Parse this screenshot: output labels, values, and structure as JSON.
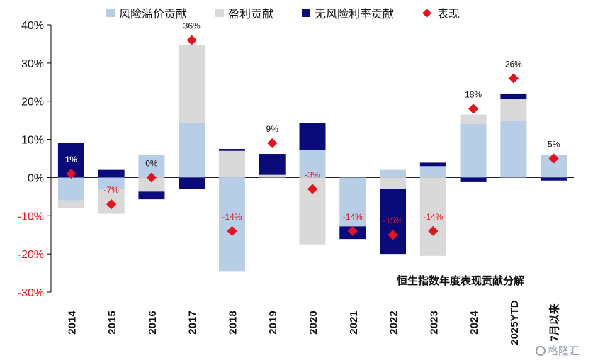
{
  "legend": [
    {
      "label": "风险溢价贡献",
      "color": "#b8cde6",
      "shape": "square"
    },
    {
      "label": "盈利贡献",
      "color": "#d9d9d9",
      "shape": "square"
    },
    {
      "label": "无风险利率贡献",
      "color": "#0a0a7a",
      "shape": "square"
    },
    {
      "label": "表现",
      "color": "#e8111d",
      "shape": "diamond"
    }
  ],
  "subtitle": "恒生指数年度表现贡献分解",
  "watermark": "格隆汇",
  "chart_data": {
    "type": "bar",
    "stacked": true,
    "categories": [
      "2014",
      "2015",
      "2016",
      "2017",
      "2018",
      "2019",
      "2020",
      "2021",
      "2022",
      "2023",
      "2024",
      "2025YTD",
      "7月以来"
    ],
    "ylim": [
      -0.3,
      0.4
    ],
    "yticks": [
      0.4,
      0.3,
      0.2,
      0.1,
      0.0,
      -0.1,
      -0.2,
      -0.3
    ],
    "ytick_labels": [
      "40%",
      "30%",
      "20%",
      "10%",
      "0%",
      "-10%",
      "-20%",
      "-30%"
    ],
    "series": [
      {
        "name": "风险溢价贡献",
        "color": "#b8cde6",
        "values": [
          -0.06,
          -0.03,
          0.06,
          0.142,
          -0.245,
          0.0,
          0.072,
          -0.128,
          0.02,
          0.03,
          0.14,
          0.15,
          0.06
        ]
      },
      {
        "name": "盈利贡献",
        "color": "#d9d9d9",
        "values": [
          -0.02,
          -0.065,
          -0.037,
          0.206,
          0.07,
          0.007,
          -0.175,
          0.0,
          -0.03,
          -0.205,
          0.025,
          0.055,
          0.0
        ]
      },
      {
        "name": "无风险利率贡献",
        "color": "#0a0a7a",
        "values": [
          0.09,
          0.02,
          -0.02,
          -0.03,
          0.005,
          0.055,
          0.07,
          -0.033,
          -0.17,
          0.009,
          -0.012,
          0.015,
          -0.008
        ]
      }
    ],
    "performance": {
      "name": "表现",
      "color": "#e8111d",
      "values": [
        0.01,
        -0.07,
        0.0,
        0.36,
        -0.14,
        0.09,
        -0.03,
        -0.14,
        -0.15,
        -0.14,
        0.18,
        0.26,
        0.05
      ],
      "labels": [
        "1%",
        "-7%",
        "0%",
        "36%",
        "-14%",
        "9%",
        "-3%",
        "-14%",
        "-15%",
        "-14%",
        "18%",
        "26%",
        "5%"
      ],
      "label_colors": [
        "#ffffff",
        "#e8111d",
        "#111111",
        "#111111",
        "#e8111d",
        "#111111",
        "#e8111d",
        "#e8111d",
        "#e8111d",
        "#e8111d",
        "#111111",
        "#111111",
        "#111111"
      ]
    }
  }
}
